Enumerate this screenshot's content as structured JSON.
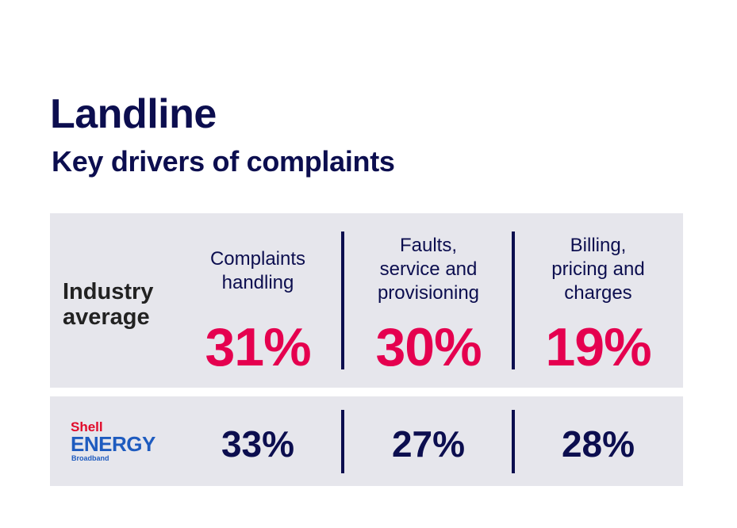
{
  "title": "Landline",
  "subtitle": "Key drivers of complaints",
  "colors": {
    "navy": "#0c0e4f",
    "highlight": "#e5004f",
    "panel": "#e6e6ec"
  },
  "chart_data": {
    "type": "table",
    "title": "Landline",
    "subtitle": "Key drivers of complaints",
    "categories": [
      [
        "Complaints",
        "handling"
      ],
      [
        "Faults,",
        "service and",
        "provisioning"
      ],
      [
        "Billing,",
        "pricing and",
        "charges"
      ]
    ],
    "series": [
      {
        "name": "Industry average",
        "name_lines": [
          "Industry",
          "average"
        ],
        "values": [
          "31%",
          "30%",
          "19%"
        ]
      },
      {
        "name": "Shell Energy Broadband",
        "values": [
          "33%",
          "27%",
          "28%"
        ]
      }
    ]
  },
  "logo": {
    "name": "shell-energy-broadband-logo",
    "line1": "Shell",
    "line2": "ENERGY",
    "line3": "Broadband"
  }
}
